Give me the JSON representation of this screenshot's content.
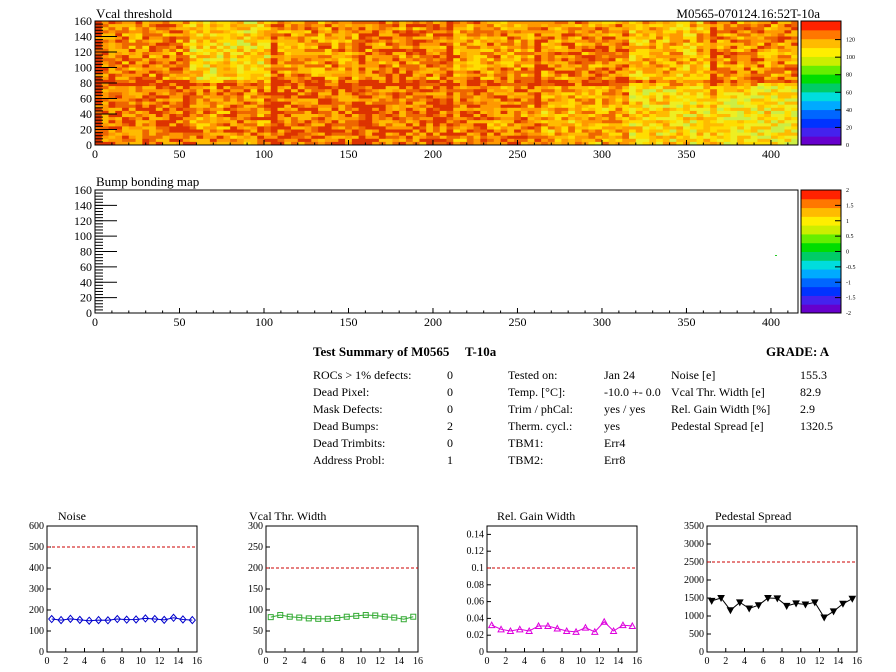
{
  "header": {
    "title_top": "Vcal threshold",
    "module_id": "M0565-070124.16:52T-10a",
    "title_bump": "Bump bonding map"
  },
  "summary": {
    "title": "Test Summary of M0565",
    "test": "T-10a",
    "grade": "GRADE:  A",
    "col1": [
      {
        "label": "ROCs > 1% defects:",
        "value": "0"
      },
      {
        "label": "Dead Pixel:",
        "value": "0"
      },
      {
        "label": "Mask Defects:",
        "value": "0"
      },
      {
        "label": "Dead Bumps:",
        "value": "2"
      },
      {
        "label": "Dead Trimbits:",
        "value": "0"
      },
      {
        "label": "Address Probl:",
        "value": "1"
      }
    ],
    "col2": [
      {
        "label": "Tested on:",
        "value": "Jan 24"
      },
      {
        "label": "Temp. [°C]:",
        "value": "-10.0 +- 0.0"
      },
      {
        "label": "Trim / phCal:",
        "value": "yes / yes"
      },
      {
        "label": "Therm. cycl.:",
        "value": "yes"
      },
      {
        "label": "TBM1:",
        "value": "Err4"
      },
      {
        "label": "TBM2:",
        "value": "Err8"
      }
    ],
    "col3": [
      {
        "label": "Noise [e]",
        "value": "155.3"
      },
      {
        "label": "Vcal Thr. Width [e]",
        "value": "82.9"
      },
      {
        "label": "Rel. Gain Width [%]",
        "value": "2.9"
      },
      {
        "label": "Pedestal Spread [e]",
        "value": "1320.5"
      }
    ]
  },
  "maps": {
    "x_ticks": [
      "0",
      "50",
      "100",
      "150",
      "200",
      "250",
      "300",
      "350",
      "400"
    ],
    "y_ticks": [
      "0",
      "20",
      "40",
      "60",
      "80",
      "100",
      "120",
      "140",
      "160"
    ],
    "palette_top": [
      "0",
      "20",
      "40",
      "60",
      "80",
      "100",
      "120"
    ],
    "palette_bump": [
      "-2",
      "-1.5",
      "-1",
      "-0.5",
      "0",
      "0.5",
      "1",
      "1.5",
      "2"
    ]
  },
  "colors": {
    "noise": "#0000cc",
    "vcal": "#33aa33",
    "gain": "#dd00dd",
    "ped": "#000000",
    "limit": "#cc0000"
  },
  "chart_data": [
    {
      "type": "line",
      "title": "Noise",
      "x": [
        0,
        1,
        2,
        3,
        4,
        5,
        6,
        7,
        8,
        9,
        10,
        11,
        12,
        13,
        14,
        15
      ],
      "values": [
        157,
        152,
        158,
        153,
        149,
        152,
        151,
        157,
        154,
        155,
        160,
        157,
        153,
        163,
        155,
        152
      ],
      "xlim": [
        0,
        16
      ],
      "ylim": [
        0,
        600
      ],
      "yticks": [
        "0",
        "100",
        "200",
        "300",
        "400",
        "500",
        "600"
      ],
      "xticks": [
        "0",
        "2",
        "4",
        "6",
        "8",
        "10",
        "12",
        "14",
        "16"
      ],
      "limit": 500,
      "marker": "diamond",
      "colorKey": "noise"
    },
    {
      "type": "line",
      "title": "Vcal Thr. Width",
      "x": [
        0,
        1,
        2,
        3,
        4,
        5,
        6,
        7,
        8,
        9,
        10,
        11,
        12,
        13,
        14,
        15
      ],
      "values": [
        83,
        88,
        84,
        82,
        80,
        79,
        79,
        81,
        84,
        86,
        88,
        87,
        84,
        82,
        78,
        84
      ],
      "xlim": [
        0,
        16
      ],
      "ylim": [
        0,
        300
      ],
      "yticks": [
        "0",
        "50",
        "100",
        "150",
        "200",
        "250",
        "300"
      ],
      "xticks": [
        "0",
        "2",
        "4",
        "6",
        "8",
        "10",
        "12",
        "14",
        "16"
      ],
      "limit": 200,
      "marker": "square",
      "colorKey": "vcal"
    },
    {
      "type": "line",
      "title": "Rel. Gain Width",
      "x": [
        0,
        1,
        2,
        3,
        4,
        5,
        6,
        7,
        8,
        9,
        10,
        11,
        12,
        13,
        14,
        15
      ],
      "values": [
        0.032,
        0.027,
        0.025,
        0.027,
        0.025,
        0.031,
        0.031,
        0.028,
        0.025,
        0.024,
        0.029,
        0.024,
        0.036,
        0.025,
        0.032,
        0.031
      ],
      "xlim": [
        0,
        16
      ],
      "ylim": [
        0,
        0.15
      ],
      "yticks": [
        "0",
        "0.02",
        "0.04",
        "0.06",
        "0.08",
        "0.1",
        "0.12",
        "0.14"
      ],
      "xticks": [
        "0",
        "2",
        "4",
        "6",
        "8",
        "10",
        "12",
        "14",
        "16"
      ],
      "limit": 0.1,
      "marker": "triangle",
      "colorKey": "gain"
    },
    {
      "type": "line",
      "title": "Pedestal Spread",
      "x": [
        0,
        1,
        2,
        3,
        4,
        5,
        6,
        7,
        8,
        9,
        10,
        11,
        12,
        13,
        14,
        15
      ],
      "values": [
        1420,
        1500,
        1160,
        1380,
        1210,
        1300,
        1500,
        1490,
        1280,
        1350,
        1320,
        1380,
        960,
        1130,
        1340,
        1480
      ],
      "xlim": [
        0,
        16
      ],
      "ylim": [
        0,
        3500
      ],
      "yticks": [
        "0",
        "500",
        "1000",
        "1500",
        "2000",
        "2500",
        "3000",
        "3500"
      ],
      "xticks": [
        "0",
        "2",
        "4",
        "6",
        "8",
        "10",
        "12",
        "14",
        "16"
      ],
      "limit": 2500,
      "marker": "triangle-down",
      "colorKey": "ped"
    }
  ]
}
